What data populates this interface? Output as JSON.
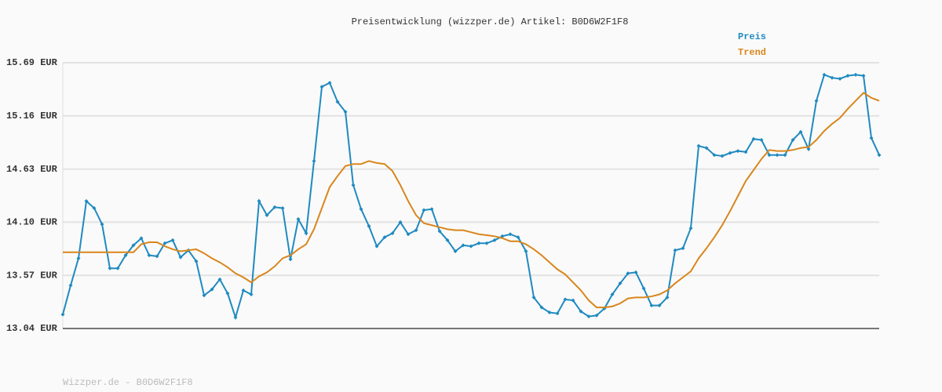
{
  "chart_data": {
    "type": "line",
    "title": "Preisentwicklung (wizzper.de) Artikel: B0D6W2F1F8",
    "footer": "Wizzper.de - B0D6W2F1F8",
    "ylim": [
      13.04,
      15.69
    ],
    "yticks": [
      {
        "value": 13.04,
        "label": "13.04 EUR"
      },
      {
        "value": 13.57,
        "label": "13.57 EUR"
      },
      {
        "value": 14.1,
        "label": "14.10 EUR"
      },
      {
        "value": 14.63,
        "label": "14.63 EUR"
      },
      {
        "value": 15.16,
        "label": "15.16 EUR"
      },
      {
        "value": 15.69,
        "label": "15.69 EUR"
      }
    ],
    "grid": true,
    "legend": "top-right",
    "series": [
      {
        "name": "Preis",
        "color": "#1f8ac0",
        "markers": true,
        "values": [
          13.18,
          13.47,
          13.74,
          14.31,
          14.24,
          14.08,
          13.64,
          13.64,
          13.77,
          13.87,
          13.94,
          13.77,
          13.76,
          13.89,
          13.92,
          13.75,
          13.82,
          13.71,
          13.37,
          13.43,
          13.53,
          13.39,
          13.15,
          13.42,
          13.38,
          14.31,
          14.17,
          14.25,
          14.24,
          13.73,
          14.13,
          13.99,
          14.71,
          15.45,
          15.49,
          15.3,
          15.2,
          14.47,
          14.23,
          14.06,
          13.86,
          13.95,
          13.99,
          14.1,
          13.98,
          14.02,
          14.22,
          14.23,
          14.01,
          13.92,
          13.81,
          13.87,
          13.86,
          13.89,
          13.89,
          13.92,
          13.96,
          13.98,
          13.95,
          13.81,
          13.35,
          13.25,
          13.2,
          13.19,
          13.33,
          13.32,
          13.21,
          13.16,
          13.17,
          13.24,
          13.38,
          13.49,
          13.59,
          13.6,
          13.44,
          13.27,
          13.27,
          13.35,
          13.82,
          13.84,
          14.04,
          14.86,
          14.84,
          14.77,
          14.76,
          14.79,
          14.81,
          14.8,
          14.93,
          14.92,
          14.77,
          14.77,
          14.77,
          14.92,
          15.0,
          14.83,
          15.31,
          15.57,
          15.54,
          15.53,
          15.56,
          15.57,
          15.56,
          14.94,
          14.77
        ]
      },
      {
        "name": "Trend",
        "color": "#d9861c",
        "markers": false,
        "values": [
          13.8,
          13.8,
          13.8,
          13.8,
          13.8,
          13.8,
          13.8,
          13.8,
          13.8,
          13.8,
          13.88,
          13.9,
          13.9,
          13.86,
          13.83,
          13.81,
          13.82,
          13.83,
          13.79,
          13.74,
          13.7,
          13.65,
          13.59,
          13.55,
          13.5,
          13.56,
          13.6,
          13.66,
          13.74,
          13.77,
          13.83,
          13.88,
          14.03,
          14.24,
          14.45,
          14.56,
          14.66,
          14.68,
          14.68,
          14.71,
          14.69,
          14.68,
          14.61,
          14.47,
          14.31,
          14.17,
          14.09,
          14.07,
          14.05,
          14.03,
          14.02,
          14.02,
          14.0,
          13.98,
          13.97,
          13.96,
          13.94,
          13.91,
          13.91,
          13.88,
          13.83,
          13.77,
          13.7,
          13.63,
          13.58,
          13.5,
          13.42,
          13.32,
          13.25,
          13.25,
          13.26,
          13.29,
          13.34,
          13.35,
          13.35,
          13.36,
          13.38,
          13.42,
          13.49,
          13.55,
          13.61,
          13.74,
          13.84,
          13.95,
          14.07,
          14.21,
          14.36,
          14.51,
          14.62,
          14.73,
          14.82,
          14.81,
          14.81,
          14.82,
          14.84,
          14.85,
          14.92,
          15.01,
          15.08,
          15.14,
          15.23,
          15.31,
          15.39,
          15.34,
          15.31
        ]
      }
    ]
  }
}
